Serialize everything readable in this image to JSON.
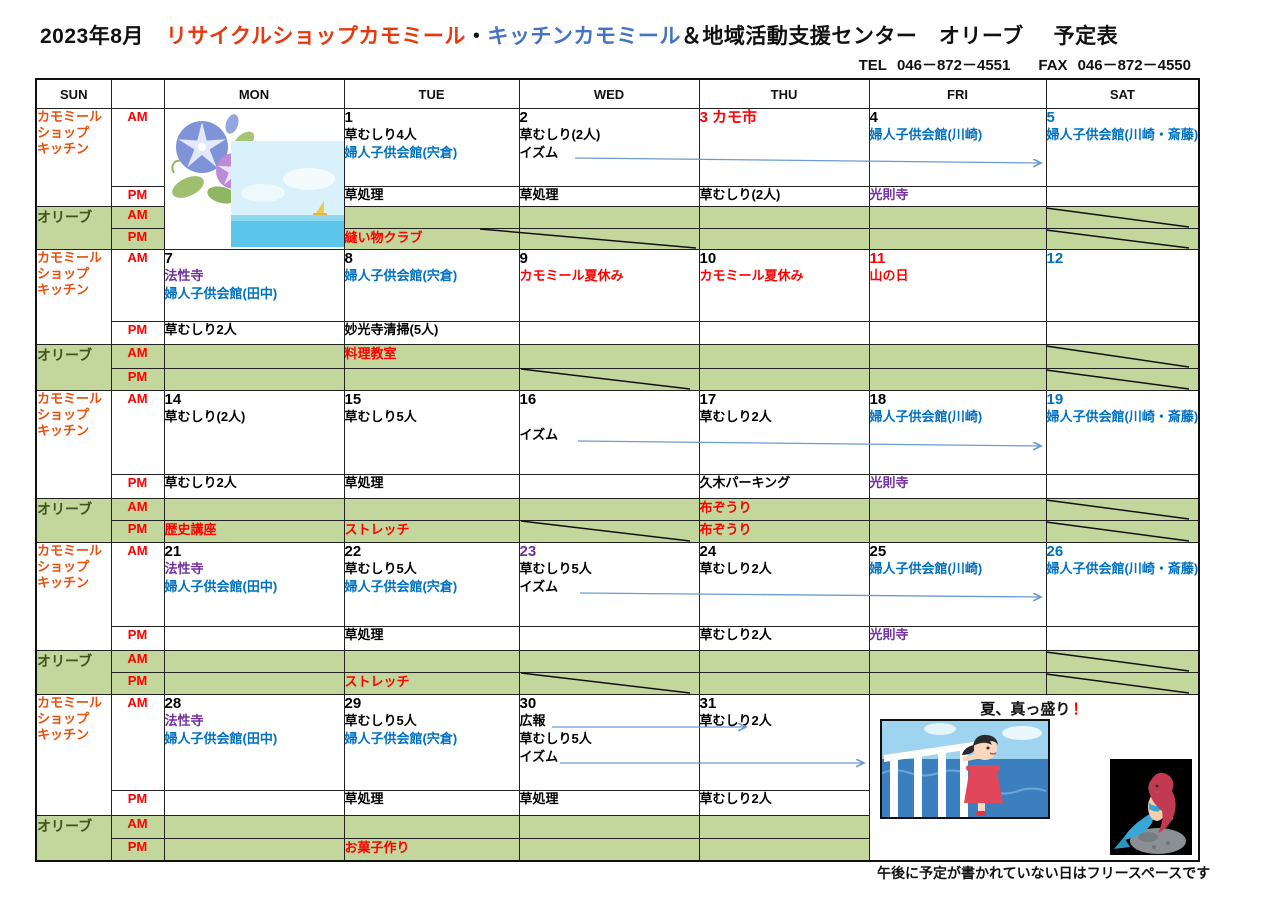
{
  "title": {
    "month": "2023年8月",
    "segment_shop": "リサイクルショップカモミール",
    "separator": "・",
    "segment_kitchen": "キッチンカモミール",
    "segment_rest": "＆地域活動支援センター　オリーブ",
    "suffix": "予定表"
  },
  "contact": {
    "tel_label": "TEL",
    "tel": "046－872－4551",
    "fax_label": "FAX",
    "fax": "046－872－4550"
  },
  "weekday_header": [
    "SUN",
    "",
    "MON",
    "TUE",
    "WED",
    "THU",
    "FRI",
    "SAT"
  ],
  "group_labels": {
    "shop_lines": [
      "カモミール",
      "ショップ",
      "キッチン"
    ],
    "olive": "オリーブ",
    "am": "AM",
    "pm": "PM"
  },
  "summer_banner": {
    "text": "夏、真っ盛り",
    "exclamation": "！"
  },
  "footer_note": "午後に予定が書かれていない日はフリースペースです",
  "illustrations": [
    "morning-glory-flowers",
    "beach-sea-scene",
    "girl-on-ship-deck",
    "mermaid-on-rock"
  ],
  "colors": {
    "red": "#ff0000",
    "content_blue": "#0070c0",
    "purple": "#7030a0",
    "olive_row_green": "#c3d69b",
    "shop_label_orange": "#e8500d",
    "title_shop_red": "#e8380d",
    "title_kitchen_blue": "#4472c4",
    "sat_header_blue": "#2f5597",
    "arrow_blue": "#6b9bd2"
  },
  "weeks": [
    {
      "days": [
        {
          "type": "images"
        },
        {
          "num": "1",
          "num_style": "k",
          "am": [
            [
              "k",
              "草むしり4人"
            ],
            [
              "b",
              "婦人子供会館(宍倉)"
            ]
          ],
          "pm": [
            [
              "k",
              "草処理"
            ]
          ],
          "olive_am": [],
          "olive_pm": [
            [
              "r",
              "縫い物クラブ"
            ]
          ]
        },
        {
          "num": "2",
          "num_style": "k",
          "am": [
            [
              "k",
              "草むしり(2人)"
            ],
            [
              "k",
              "イズム"
            ]
          ],
          "pm": [
            [
              "k",
              "草処理"
            ]
          ],
          "olive_am": [],
          "olive_pm": []
        },
        {
          "num": "3 カモ市",
          "num_style": "r",
          "am": [],
          "pm": [
            [
              "k",
              "草むしり(2人)"
            ]
          ],
          "olive_am": [],
          "olive_pm": []
        },
        {
          "num": "4",
          "num_style": "k",
          "am": [
            [
              "b",
              "婦人子供会館(川崎)"
            ]
          ],
          "pm": [
            [
              "p",
              "光則寺"
            ]
          ],
          "olive_am": [],
          "olive_pm": []
        },
        {
          "num": "5",
          "num_style": "b",
          "am": [
            [
              "b",
              "婦人子供会館(川崎・斎藤)"
            ]
          ],
          "pm": [],
          "olive_am": [],
          "olive_pm": []
        }
      ]
    },
    {
      "days": [
        {
          "num": "7",
          "num_style": "k",
          "am": [
            [
              "p",
              "法性寺"
            ],
            [
              "b",
              "婦人子供会館(田中)"
            ]
          ],
          "pm": [
            [
              "k",
              "草むしり2人"
            ]
          ],
          "olive_am": [],
          "olive_pm": []
        },
        {
          "num": "8",
          "num_style": "k",
          "am": [
            [
              "b",
              "婦人子供会館(宍倉)"
            ]
          ],
          "pm": [
            [
              "k",
              "妙光寺清掃(5人)"
            ]
          ],
          "olive_am": [
            [
              "r",
              "料理教室"
            ]
          ],
          "olive_pm": []
        },
        {
          "num": "9",
          "num_style": "k",
          "am": [
            [
              "r",
              "カモミール夏休み"
            ]
          ],
          "pm": [],
          "olive_am": [],
          "olive_pm": []
        },
        {
          "num": "10",
          "num_style": "k",
          "am": [
            [
              "r",
              "カモミール夏休み"
            ]
          ],
          "pm": [],
          "olive_am": [],
          "olive_pm": []
        },
        {
          "num": "11",
          "num_style": "r",
          "am": [
            [
              "r",
              "山の日"
            ]
          ],
          "pm": [],
          "olive_am": [],
          "olive_pm": []
        },
        {
          "num": "12",
          "num_style": "b",
          "am": [],
          "pm": [],
          "olive_am": [],
          "olive_pm": []
        }
      ]
    },
    {
      "days": [
        {
          "num": "14",
          "num_style": "k",
          "am": [
            [
              "k",
              "草むしり(2人)"
            ]
          ],
          "pm": [
            [
              "k",
              "草むしり2人"
            ]
          ],
          "olive_am": [],
          "olive_pm": [
            [
              "r",
              "歴史講座"
            ]
          ]
        },
        {
          "num": "15",
          "num_style": "k",
          "am": [
            [
              "k",
              "草むしり5人"
            ]
          ],
          "pm": [
            [
              "k",
              "草処理"
            ]
          ],
          "olive_am": [],
          "olive_pm": [
            [
              "r",
              "ストレッチ"
            ]
          ]
        },
        {
          "num": "16",
          "num_style": "k",
          "am": [
            [
              "k",
              ""
            ],
            [
              "k",
              "イズム"
            ]
          ],
          "pm": [],
          "olive_am": [],
          "olive_pm": []
        },
        {
          "num": "17",
          "num_style": "k",
          "am": [
            [
              "k",
              "草むしり2人"
            ]
          ],
          "pm": [
            [
              "k",
              "久木パーキング"
            ]
          ],
          "olive_am": [
            [
              "r",
              "布ぞうり"
            ]
          ],
          "olive_pm": [
            [
              "r",
              "布ぞうり"
            ]
          ]
        },
        {
          "num": "18",
          "num_style": "k",
          "am": [
            [
              "b",
              "婦人子供会館(川崎)"
            ]
          ],
          "pm": [
            [
              "p",
              "光則寺"
            ]
          ],
          "olive_am": [],
          "olive_pm": []
        },
        {
          "num": "19",
          "num_style": "b",
          "am": [
            [
              "b",
              "婦人子供会館(川崎・斎藤)"
            ]
          ],
          "pm": [],
          "olive_am": [],
          "olive_pm": []
        }
      ]
    },
    {
      "days": [
        {
          "num": "21",
          "num_style": "k",
          "am": [
            [
              "p",
              "法性寺"
            ],
            [
              "b",
              "婦人子供会館(田中)"
            ]
          ],
          "pm": [],
          "olive_am": [],
          "olive_pm": []
        },
        {
          "num": "22",
          "num_style": "k",
          "am": [
            [
              "k",
              "草むしり5人"
            ],
            [
              "b",
              "婦人子供会館(宍倉)"
            ]
          ],
          "pm": [
            [
              "k",
              "草処理"
            ]
          ],
          "olive_am": [],
          "olive_pm": [
            [
              "r",
              "ストレッチ"
            ]
          ]
        },
        {
          "num": "23",
          "num_style": "p",
          "am": [
            [
              "k",
              "草むしり5人"
            ],
            [
              "k",
              "イズム"
            ]
          ],
          "pm": [],
          "olive_am": [],
          "olive_pm": []
        },
        {
          "num": "24",
          "num_style": "k",
          "am": [
            [
              "k",
              "草むしり2人"
            ]
          ],
          "pm": [
            [
              "k",
              "草むしり2人"
            ]
          ],
          "olive_am": [],
          "olive_pm": []
        },
        {
          "num": "25",
          "num_style": "k",
          "am": [
            [
              "b",
              "婦人子供会館(川崎)"
            ]
          ],
          "pm": [
            [
              "p",
              "光則寺"
            ]
          ],
          "olive_am": [],
          "olive_pm": []
        },
        {
          "num": "26",
          "num_style": "b",
          "am": [
            [
              "b",
              "婦人子供会館(川崎・斎藤)"
            ]
          ],
          "pm": [],
          "olive_am": [],
          "olive_pm": []
        }
      ]
    },
    {
      "days": [
        {
          "num": "28",
          "num_style": "k",
          "am": [
            [
              "p",
              "法性寺"
            ],
            [
              "b",
              "婦人子供会館(田中)"
            ]
          ],
          "pm": [],
          "olive_am": [],
          "olive_pm": []
        },
        {
          "num": "29",
          "num_style": "k",
          "am": [
            [
              "k",
              "草むしり5人"
            ],
            [
              "b",
              "婦人子供会館(宍倉)"
            ]
          ],
          "pm": [
            [
              "k",
              "草処理"
            ]
          ],
          "olive_am": [],
          "olive_pm": [
            [
              "r",
              "お菓子作り"
            ]
          ]
        },
        {
          "num": "30",
          "num_style": "k",
          "am": [
            [
              "k",
              "広報"
            ],
            [
              "k",
              "草むしり5人"
            ],
            [
              "k",
              "イズム"
            ]
          ],
          "pm": [
            [
              "k",
              "草処理"
            ]
          ],
          "olive_am": [],
          "olive_pm": []
        },
        {
          "num": "31",
          "num_style": "k",
          "am": [
            [
              "k",
              "草むしり2人"
            ]
          ],
          "pm": [
            [
              "k",
              "草むしり2人"
            ]
          ],
          "olive_am": [],
          "olive_pm": []
        },
        {
          "type": "banner"
        },
        {
          "type": "skip"
        }
      ]
    }
  ]
}
